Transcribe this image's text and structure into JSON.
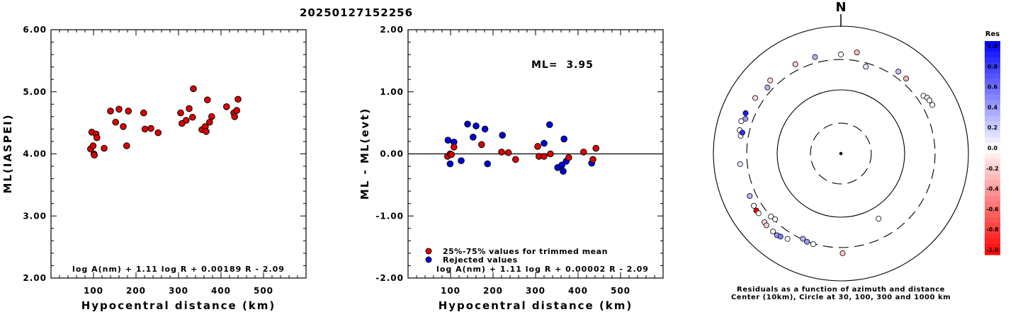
{
  "page_title": "20250127152256",
  "chart_data": [
    {
      "type": "scatter",
      "name": "ml-vs-distance",
      "xlabel": "Hypocentral distance (km)",
      "ylabel": "ML(IASPEI)",
      "xlim": [
        0,
        600
      ],
      "ylim": [
        2.0,
        6.0
      ],
      "xticks": [
        100,
        200,
        300,
        400,
        500
      ],
      "xtick_labels": [
        "100",
        "200",
        "300",
        "400",
        "500"
      ],
      "yticks": [
        2.0,
        3.0,
        4.0,
        5.0,
        6.0
      ],
      "ytick_labels": [
        "2.00",
        "3.00",
        "4.00",
        "5.00",
        "6.00"
      ],
      "formula": "log A(nm) + 1.11 log R + 0.00189 R - 2.09",
      "marker_color": "#dd0000",
      "points": [
        [
          93,
          4.08
        ],
        [
          96,
          4.35
        ],
        [
          99,
          4.13
        ],
        [
          101,
          4.0
        ],
        [
          102,
          3.98
        ],
        [
          106,
          4.32
        ],
        [
          108,
          4.26
        ],
        [
          125,
          4.09
        ],
        [
          140,
          4.69
        ],
        [
          152,
          4.51
        ],
        [
          160,
          4.72
        ],
        [
          170,
          4.44
        ],
        [
          178,
          4.13
        ],
        [
          182,
          4.69
        ],
        [
          218,
          4.66
        ],
        [
          221,
          4.4
        ],
        [
          235,
          4.41
        ],
        [
          252,
          4.34
        ],
        [
          305,
          4.66
        ],
        [
          308,
          4.49
        ],
        [
          318,
          4.54
        ],
        [
          325,
          4.73
        ],
        [
          333,
          4.59
        ],
        [
          335,
          5.05
        ],
        [
          355,
          4.39
        ],
        [
          363,
          4.44
        ],
        [
          365,
          4.36
        ],
        [
          368,
          4.87
        ],
        [
          373,
          4.51
        ],
        [
          378,
          4.6
        ],
        [
          413,
          4.76
        ],
        [
          430,
          4.66
        ],
        [
          432,
          4.6
        ],
        [
          437,
          4.7
        ],
        [
          440,
          4.88
        ]
      ]
    },
    {
      "type": "scatter",
      "name": "residual-vs-distance",
      "xlabel": "Hypocentral distance (km)",
      "ylabel": "ML - ML(evt)",
      "xlim": [
        0,
        600
      ],
      "ylim": [
        -2.0,
        2.0
      ],
      "xticks": [
        100,
        200,
        300,
        400,
        500
      ],
      "xtick_labels": [
        "100",
        "200",
        "300",
        "400",
        "500"
      ],
      "yticks": [
        -2.0,
        -1.0,
        0.0,
        1.0,
        2.0
      ],
      "ytick_labels": [
        "-2.00",
        "-1.00",
        "0.00",
        "1.00",
        "2.00"
      ],
      "annotation": "ML=  3.95",
      "formula": "log A(nm) + 1.11 log R + 0.00002 R - 2.09",
      "legend": [
        {
          "label": "25%-75% values for trimmed mean",
          "color": "#dd0000"
        },
        {
          "label": "Rejected values",
          "color": "#0000dd"
        }
      ],
      "trimmed": [
        [
          93,
          -0.04
        ],
        [
          99,
          0.0
        ],
        [
          102,
          -0.01
        ],
        [
          108,
          0.11
        ],
        [
          173,
          0.15
        ],
        [
          220,
          0.03
        ],
        [
          236,
          0.02
        ],
        [
          253,
          -0.09
        ],
        [
          305,
          0.12
        ],
        [
          308,
          -0.04
        ],
        [
          320,
          -0.04
        ],
        [
          335,
          0.0
        ],
        [
          378,
          -0.06
        ],
        [
          413,
          0.03
        ],
        [
          435,
          -0.09
        ],
        [
          442,
          0.09
        ]
      ],
      "rejected": [
        [
          94,
          0.22
        ],
        [
          99,
          -0.16
        ],
        [
          108,
          0.19
        ],
        [
          125,
          -0.11
        ],
        [
          140,
          0.48
        ],
        [
          153,
          0.27
        ],
        [
          160,
          0.45
        ],
        [
          181,
          0.4
        ],
        [
          187,
          -0.16
        ],
        [
          222,
          0.3
        ],
        [
          320,
          0.17
        ],
        [
          333,
          0.47
        ],
        [
          352,
          -0.22
        ],
        [
          362,
          -0.18
        ],
        [
          365,
          -0.28
        ],
        [
          367,
          0.24
        ],
        [
          372,
          -0.12
        ],
        [
          432,
          -0.15
        ]
      ]
    },
    {
      "type": "polar-scatter",
      "name": "azimuth-residual-plot",
      "north_label": "N",
      "caption_lines": [
        "Residuals as a function of azimuth and distance",
        "Center (10km), Circle at 30, 100, 300 and 1000 km"
      ],
      "rings_km": [
        30,
        100,
        300,
        1000
      ],
      "colorbar": {
        "title": "Res",
        "range": [
          -1.0,
          1.0
        ],
        "tick_labels": [
          "1.0",
          "0.8",
          "0.6",
          "0.4",
          "0.2",
          "0.0",
          "-0.2",
          "-0.4",
          "-0.6",
          "-0.8",
          "-1.0"
        ]
      },
      "stations": [
        {
          "az": 16,
          "dist": 262,
          "res": 0.1
        },
        {
          "az": 35,
          "dist": 373,
          "res": 0.25
        },
        {
          "az": 41,
          "dist": 362,
          "res": -0.3
        },
        {
          "az": 55,
          "dist": 380,
          "res": 0.0
        },
        {
          "az": 57,
          "dist": 410,
          "res": -0.1
        },
        {
          "az": 59,
          "dist": 418,
          "res": 0.0
        },
        {
          "az": 62,
          "dist": 422,
          "res": 0.0
        },
        {
          "az": 0,
          "dist": 360,
          "res": 0.0
        },
        {
          "az": 345,
          "dist": 370,
          "res": 0.3
        },
        {
          "az": 9,
          "dist": 405,
          "res": -0.25
        },
        {
          "az": 333,
          "dist": 375,
          "res": -0.2
        },
        {
          "az": 312,
          "dist": 355,
          "res": 0.3
        },
        {
          "az": 316,
          "dist": 395,
          "res": -0.15
        },
        {
          "az": 303,
          "dist": 400,
          "res": -0.15
        },
        {
          "az": 290,
          "dist": 392,
          "res": 0.4
        },
        {
          "az": 293,
          "dist": 420,
          "res": 0.9
        },
        {
          "az": 288,
          "dist": 440,
          "res": 0.0
        },
        {
          "az": 283,
          "dist": 425,
          "res": 0.0
        },
        {
          "az": 280,
          "dist": 395,
          "res": 0.0
        },
        {
          "az": 282,
          "dist": 380,
          "res": 0.8
        },
        {
          "az": 264,
          "dist": 388,
          "res": 0.1
        },
        {
          "az": 245,
          "dist": 378,
          "res": 0.3
        },
        {
          "az": 239,
          "dist": 392,
          "res": 0.0
        },
        {
          "az": 236,
          "dist": 400,
          "res": -1.0
        },
        {
          "az": 234,
          "dist": 395,
          "res": 0.0
        },
        {
          "az": 228,
          "dist": 410,
          "res": -0.15
        },
        {
          "az": 226,
          "dist": 420,
          "res": -0.2
        },
        {
          "az": 221,
          "dist": 420,
          "res": 0.05
        },
        {
          "az": 218,
          "dist": 425,
          "res": 0.4
        },
        {
          "az": 216,
          "dist": 410,
          "res": 0.5
        },
        {
          "az": 212,
          "dist": 380,
          "res": 0.0
        },
        {
          "az": 179,
          "dist": 368,
          "res": -0.2
        },
        {
          "az": 228,
          "dist": 300,
          "res": 0.0
        },
        {
          "az": 225,
          "dist": 288,
          "res": 0.0
        },
        {
          "az": 204,
          "dist": 292,
          "res": 0.3
        },
        {
          "az": 201,
          "dist": 305,
          "res": 0.4
        },
        {
          "az": 197,
          "dist": 308,
          "res": 0.0
        },
        {
          "az": 150,
          "dist": 152,
          "res": 0.0
        },
        {
          "az": 78,
          "dist": 0.1,
          "res": 0.0
        }
      ]
    }
  ]
}
